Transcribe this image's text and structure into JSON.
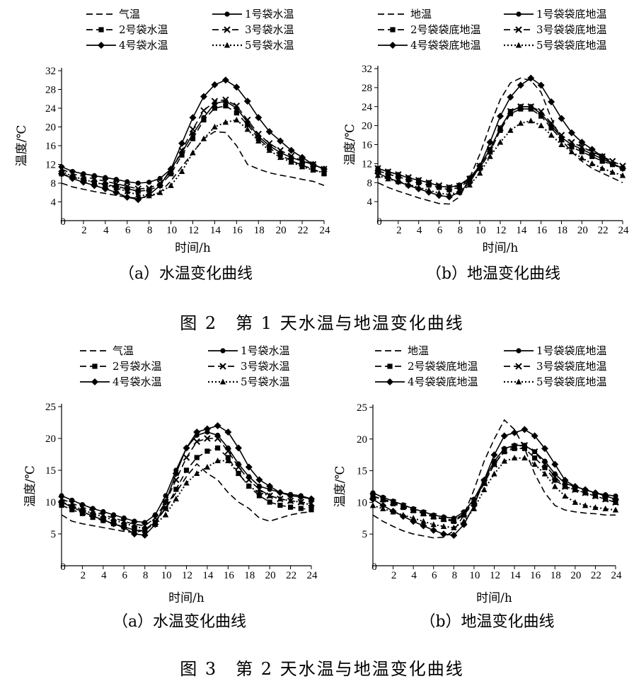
{
  "figures": [
    {
      "caption": "图 2　第 1 天水温与地温变化曲线"
    },
    {
      "caption": "图 3　第 2 天水温与地温变化曲线"
    }
  ],
  "chart_data": [
    {
      "type": "line",
      "subcaption": "（a）水温变化曲线",
      "xlabel": "时间/h",
      "ylabel": "温度/℃",
      "xlim": [
        0,
        24
      ],
      "ylim": [
        0,
        32
      ],
      "xticks": [
        0,
        2,
        4,
        6,
        8,
        10,
        12,
        14,
        16,
        18,
        20,
        22,
        24
      ],
      "yticks": [
        4,
        8,
        12,
        16,
        20,
        24,
        28,
        32
      ],
      "grid": false,
      "legend_position": "top",
      "x": [
        0,
        1,
        2,
        3,
        4,
        5,
        6,
        7,
        8,
        9,
        10,
        11,
        12,
        13,
        14,
        15,
        16,
        17,
        18,
        19,
        20,
        21,
        22,
        23,
        24
      ],
      "series": [
        {
          "name": "气温",
          "marker": "none",
          "dash": "dashed",
          "values": [
            8.0,
            7.2,
            6.7,
            6.2,
            5.8,
            5.4,
            5.0,
            4.8,
            5.1,
            6.0,
            8.5,
            11.5,
            14.5,
            17.5,
            19.0,
            18.8,
            16.0,
            12.0,
            11.0,
            10.2,
            9.7,
            9.3,
            8.8,
            8.4,
            7.5
          ]
        },
        {
          "name": "1号袋水温",
          "marker": "circle",
          "dash": "solid",
          "values": [
            11.5,
            10.5,
            10.0,
            9.6,
            9.2,
            8.8,
            8.3,
            8.0,
            8.2,
            9.0,
            11.0,
            14.5,
            18.5,
            22.0,
            25.0,
            25.5,
            24.0,
            21.0,
            18.0,
            16.0,
            14.5,
            13.5,
            12.7,
            12.0,
            11.0
          ]
        },
        {
          "name": "2号袋水温",
          "marker": "square",
          "dash": "dashed",
          "values": [
            10.0,
            9.3,
            8.7,
            8.2,
            7.7,
            7.3,
            6.8,
            6.3,
            6.5,
            7.5,
            10.0,
            14.0,
            17.5,
            21.5,
            24.0,
            24.5,
            23.0,
            20.5,
            17.5,
            15.5,
            14.0,
            12.8,
            11.8,
            11.0,
            10.0
          ]
        },
        {
          "name": "3号袋水温",
          "marker": "x",
          "dash": "dashed",
          "values": [
            11.0,
            10.0,
            9.4,
            8.9,
            8.4,
            7.9,
            7.3,
            6.8,
            6.9,
            8.0,
            10.5,
            15.0,
            19.5,
            23.5,
            25.5,
            25.8,
            24.5,
            21.5,
            18.5,
            16.5,
            15.0,
            13.8,
            12.8,
            12.0,
            11.0
          ]
        },
        {
          "name": "4号袋水温",
          "marker": "diamond",
          "dash": "solid",
          "values": [
            10.0,
            9.0,
            8.2,
            7.5,
            6.8,
            6.0,
            5.0,
            4.5,
            5.5,
            7.5,
            11.0,
            16.5,
            22.0,
            26.5,
            29.0,
            30.0,
            28.5,
            25.5,
            22.0,
            19.0,
            17.0,
            15.0,
            13.5,
            12.0,
            11.0
          ]
        },
        {
          "name": "5号袋水温",
          "marker": "triangle",
          "dash": "dotted",
          "values": [
            10.5,
            9.5,
            8.8,
            8.2,
            7.6,
            7.0,
            6.2,
            5.5,
            5.3,
            6.0,
            7.5,
            10.5,
            14.5,
            17.5,
            20.0,
            21.0,
            21.5,
            19.5,
            17.0,
            15.0,
            13.5,
            12.5,
            11.5,
            10.8,
            10.2
          ]
        }
      ]
    },
    {
      "type": "line",
      "subcaption": "（b）地温变化曲线",
      "xlabel": "时间/h",
      "ylabel": "温度/℃",
      "xlim": [
        0,
        24
      ],
      "ylim": [
        0,
        32
      ],
      "xticks": [
        0,
        2,
        4,
        6,
        8,
        10,
        12,
        14,
        16,
        18,
        20,
        22,
        24
      ],
      "yticks": [
        4,
        8,
        12,
        16,
        20,
        24,
        28,
        32
      ],
      "grid": false,
      "legend_position": "top",
      "x": [
        0,
        1,
        2,
        3,
        4,
        5,
        6,
        7,
        8,
        9,
        10,
        11,
        12,
        13,
        14,
        15,
        16,
        17,
        18,
        19,
        20,
        21,
        22,
        23,
        24
      ],
      "series": [
        {
          "name": "地温",
          "marker": "none",
          "dash": "dashed",
          "values": [
            8.0,
            7.0,
            6.2,
            5.5,
            4.8,
            4.2,
            3.6,
            3.5,
            5.0,
            9.0,
            14.0,
            20.0,
            25.5,
            29.0,
            30.0,
            29.5,
            27.0,
            21.5,
            17.0,
            14.5,
            12.5,
            11.0,
            10.0,
            9.0,
            8.0
          ]
        },
        {
          "name": "1号袋袋底地温",
          "marker": "circle",
          "dash": "solid",
          "values": [
            11.0,
            10.3,
            9.7,
            9.0,
            8.5,
            8.0,
            7.3,
            7.0,
            7.5,
            9.0,
            11.5,
            15.0,
            19.5,
            23.0,
            24.0,
            24.0,
            22.5,
            20.0,
            17.5,
            16.0,
            15.0,
            14.0,
            13.0,
            12.0,
            11.0
          ]
        },
        {
          "name": "2号袋袋底地温",
          "marker": "square",
          "dash": "dashed",
          "values": [
            10.5,
            9.8,
            9.2,
            8.6,
            8.0,
            7.5,
            7.0,
            6.5,
            7.0,
            8.5,
            11.0,
            14.5,
            19.0,
            22.5,
            23.5,
            23.5,
            22.0,
            19.5,
            17.0,
            15.5,
            14.5,
            13.5,
            12.5,
            11.8,
            11.0
          ]
        },
        {
          "name": "3号袋袋底地温",
          "marker": "x",
          "dash": "dashed",
          "values": [
            11.0,
            10.3,
            9.7,
            9.1,
            8.5,
            8.0,
            7.4,
            7.0,
            7.3,
            8.8,
            11.5,
            15.0,
            19.5,
            23.0,
            24.0,
            24.0,
            23.0,
            20.5,
            18.0,
            16.5,
            15.5,
            14.5,
            13.5,
            12.5,
            11.5
          ]
        },
        {
          "name": "4号袋袋底地温",
          "marker": "diamond",
          "dash": "solid",
          "values": [
            10.0,
            9.0,
            8.2,
            7.4,
            6.7,
            6.0,
            5.3,
            5.0,
            6.0,
            8.0,
            11.5,
            16.5,
            22.0,
            26.0,
            28.5,
            30.0,
            28.5,
            25.0,
            21.5,
            18.5,
            16.5,
            15.0,
            13.5,
            12.0,
            11.0
          ]
        },
        {
          "name": "5号袋袋底地温",
          "marker": "triangle",
          "dash": "dotted",
          "values": [
            9.5,
            8.8,
            8.2,
            7.6,
            7.0,
            6.4,
            5.8,
            5.5,
            6.0,
            7.5,
            10.0,
            13.5,
            16.5,
            19.0,
            20.5,
            21.0,
            20.0,
            18.0,
            16.0,
            14.5,
            13.2,
            12.0,
            11.0,
            10.2,
            9.5
          ]
        }
      ]
    },
    {
      "type": "line",
      "subcaption": "（a）水温变化曲线",
      "xlabel": "时间/h",
      "ylabel": "温度/℃",
      "xlim": [
        0,
        24
      ],
      "ylim": [
        0,
        25
      ],
      "xticks": [
        0,
        2,
        4,
        6,
        8,
        10,
        12,
        14,
        16,
        18,
        20,
        22,
        24
      ],
      "yticks": [
        5,
        10,
        15,
        20,
        25
      ],
      "grid": false,
      "legend_position": "top",
      "x": [
        0,
        1,
        2,
        3,
        4,
        5,
        6,
        7,
        8,
        9,
        10,
        11,
        12,
        13,
        14,
        15,
        16,
        17,
        18,
        19,
        20,
        21,
        22,
        23,
        24
      ],
      "series": [
        {
          "name": "气温",
          "marker": "none",
          "dash": "dashed",
          "values": [
            8.0,
            7.0,
            6.6,
            6.3,
            6.0,
            5.7,
            5.4,
            5.2,
            5.6,
            7.0,
            9.0,
            11.5,
            14.0,
            16.0,
            14.5,
            13.5,
            11.5,
            10.0,
            9.0,
            7.5,
            7.0,
            7.5,
            8.0,
            8.3,
            8.5
          ]
        },
        {
          "name": "1号袋水温",
          "marker": "circle",
          "dash": "solid",
          "values": [
            11.0,
            10.3,
            9.6,
            9.0,
            8.5,
            8.0,
            7.5,
            7.0,
            6.8,
            8.0,
            11.0,
            15.0,
            18.5,
            20.5,
            21.0,
            20.5,
            18.5,
            16.0,
            14.0,
            12.5,
            12.0,
            11.5,
            11.2,
            11.0,
            10.5
          ]
        },
        {
          "name": "2号袋水温",
          "marker": "square",
          "dash": "dashed",
          "values": [
            9.5,
            8.8,
            8.2,
            7.6,
            7.1,
            6.6,
            6.1,
            5.6,
            5.5,
            6.8,
            9.0,
            12.0,
            15.0,
            17.0,
            18.0,
            18.5,
            17.0,
            14.5,
            12.5,
            11.0,
            10.0,
            9.5,
            9.2,
            9.0,
            8.8
          ]
        },
        {
          "name": "3号袋水温",
          "marker": "x",
          "dash": "dashed",
          "values": [
            10.5,
            9.8,
            9.2,
            8.6,
            8.0,
            7.5,
            7.0,
            6.5,
            6.3,
            7.5,
            10.0,
            13.5,
            17.0,
            19.5,
            20.0,
            20.0,
            18.0,
            15.5,
            13.5,
            12.0,
            11.0,
            10.5,
            10.2,
            10.0,
            9.8
          ]
        },
        {
          "name": "4号袋水温",
          "marker": "diamond",
          "dash": "solid",
          "values": [
            10.0,
            9.2,
            8.5,
            7.8,
            7.2,
            6.6,
            6.0,
            5.0,
            4.8,
            6.5,
            10.0,
            14.5,
            18.5,
            21.0,
            21.5,
            22.0,
            21.0,
            18.5,
            15.5,
            13.5,
            12.5,
            11.5,
            11.0,
            10.8,
            10.5
          ]
        },
        {
          "name": "5号袋水温",
          "marker": "triangle",
          "dash": "dotted",
          "values": [
            10.0,
            9.4,
            8.8,
            8.2,
            7.7,
            7.2,
            6.7,
            6.2,
            5.8,
            6.5,
            8.0,
            10.5,
            13.0,
            14.5,
            15.5,
            16.5,
            16.5,
            14.5,
            12.5,
            11.5,
            11.0,
            10.5,
            10.2,
            10.0,
            9.5
          ]
        }
      ]
    },
    {
      "type": "line",
      "subcaption": "（b）地温变化曲线",
      "xlabel": "时间/h",
      "ylabel": "温度/℃",
      "xlim": [
        0,
        24
      ],
      "ylim": [
        0,
        25
      ],
      "xticks": [
        0,
        2,
        4,
        6,
        8,
        10,
        12,
        14,
        16,
        18,
        20,
        22,
        24
      ],
      "yticks": [
        5,
        10,
        15,
        20,
        25
      ],
      "grid": false,
      "legend_position": "top",
      "x": [
        0,
        1,
        2,
        3,
        4,
        5,
        6,
        7,
        8,
        9,
        10,
        11,
        12,
        13,
        14,
        15,
        16,
        17,
        18,
        19,
        20,
        21,
        22,
        23,
        24
      ],
      "series": [
        {
          "name": "地温",
          "marker": "none",
          "dash": "dashed",
          "values": [
            8.0,
            7.0,
            6.2,
            5.5,
            5.0,
            4.7,
            4.4,
            4.5,
            5.5,
            8.0,
            12.0,
            16.5,
            20.0,
            23.0,
            21.5,
            18.5,
            14.5,
            11.5,
            9.5,
            8.8,
            8.5,
            8.3,
            8.2,
            8.0,
            8.0
          ]
        },
        {
          "name": "1号袋袋底地温",
          "marker": "circle",
          "dash": "solid",
          "values": [
            11.5,
            10.8,
            10.2,
            9.6,
            9.0,
            8.5,
            8.0,
            7.7,
            7.5,
            8.5,
            10.5,
            13.5,
            16.5,
            18.5,
            19.0,
            19.0,
            18.0,
            16.5,
            14.5,
            13.0,
            12.5,
            12.0,
            11.5,
            11.2,
            11.0
          ]
        },
        {
          "name": "2号袋袋底地温",
          "marker": "square",
          "dash": "dashed",
          "values": [
            11.0,
            10.4,
            9.8,
            9.2,
            8.7,
            8.2,
            7.7,
            7.3,
            7.0,
            8.0,
            10.0,
            13.0,
            16.0,
            18.0,
            18.5,
            18.5,
            17.0,
            15.5,
            13.5,
            12.5,
            12.0,
            11.5,
            11.0,
            10.5,
            10.0
          ]
        },
        {
          "name": "3号袋袋底地温",
          "marker": "x",
          "dash": "dashed",
          "values": [
            11.0,
            10.5,
            10.0,
            9.4,
            8.8,
            8.3,
            7.8,
            7.4,
            7.2,
            8.2,
            10.2,
            13.2,
            16.0,
            18.2,
            18.8,
            19.0,
            18.0,
            16.0,
            14.0,
            12.5,
            12.0,
            11.5,
            11.0,
            10.5,
            10.0
          ]
        },
        {
          "name": "4号袋袋底地温",
          "marker": "diamond",
          "dash": "solid",
          "values": [
            10.5,
            9.5,
            8.6,
            7.8,
            7.0,
            6.3,
            5.6,
            5.0,
            4.8,
            6.5,
            9.5,
            13.5,
            17.5,
            20.5,
            21.0,
            21.5,
            20.5,
            18.5,
            16.0,
            13.5,
            12.5,
            12.0,
            11.5,
            11.0,
            10.5
          ]
        },
        {
          "name": "5号袋袋底地温",
          "marker": "triangle",
          "dash": "dotted",
          "values": [
            9.5,
            9.0,
            8.5,
            8.0,
            7.5,
            7.0,
            6.5,
            6.2,
            6.0,
            7.0,
            9.0,
            12.0,
            14.5,
            16.5,
            17.0,
            17.0,
            16.0,
            14.5,
            12.5,
            11.0,
            10.0,
            9.5,
            9.2,
            9.0,
            8.8
          ]
        }
      ]
    }
  ]
}
